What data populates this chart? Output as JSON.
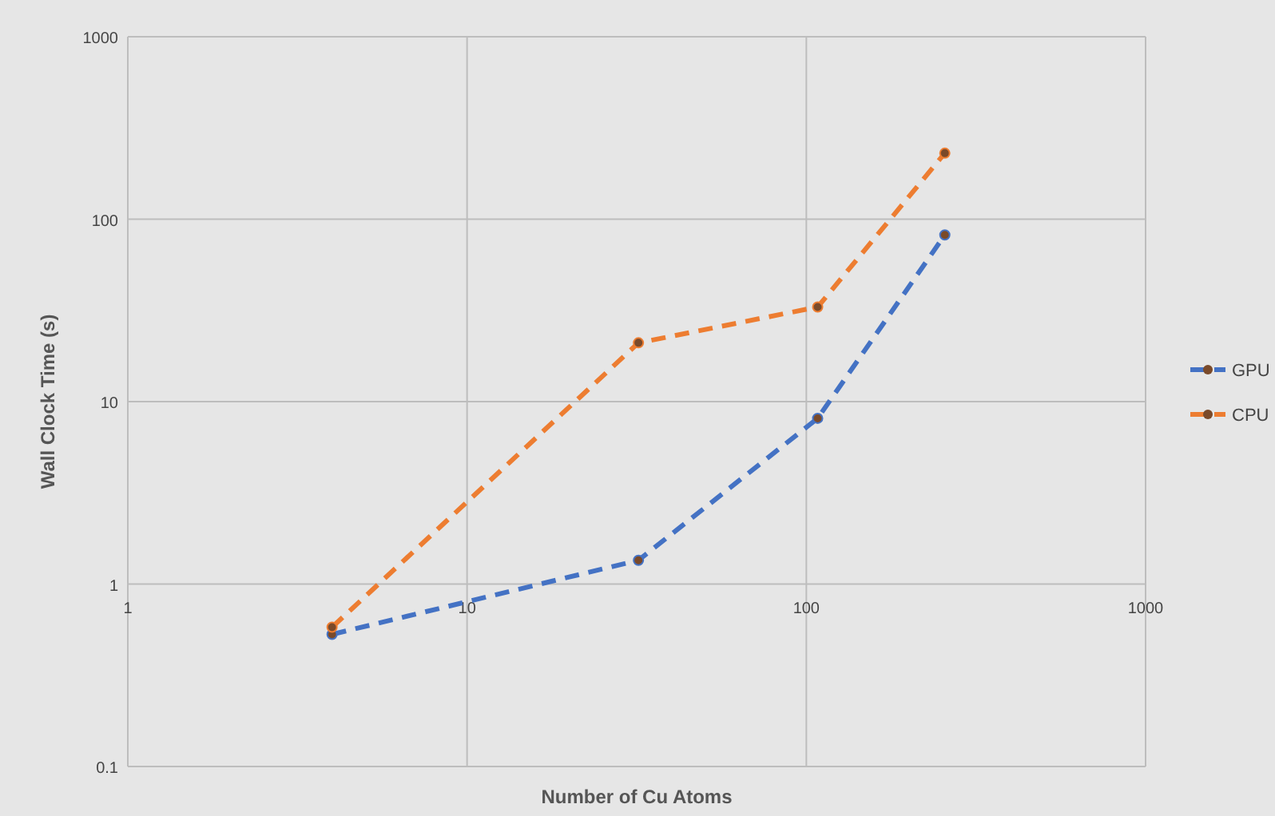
{
  "chart_data": {
    "type": "line",
    "xlabel": "Number of Cu Atoms",
    "ylabel": "Wall Clock Time (s)",
    "log": "xy",
    "xlim": [
      1,
      1000
    ],
    "xticks": [
      1,
      10,
      100,
      1000
    ],
    "ylim": [
      0.1,
      1000
    ],
    "yticks": [
      0.1,
      1,
      10,
      100,
      1000
    ],
    "grid": true,
    "legend": "right",
    "marker": "circle",
    "line_style": "dashed",
    "series": [
      {
        "name": "GPU",
        "color": "#4472c4",
        "x": [
          4,
          32,
          108,
          256
        ],
        "values": [
          0.53,
          1.35,
          8.1,
          82
        ]
      },
      {
        "name": "CPU",
        "color": "#ed7d31",
        "x": [
          4,
          32,
          108,
          256
        ],
        "values": [
          0.58,
          21,
          33,
          230
        ]
      }
    ]
  }
}
